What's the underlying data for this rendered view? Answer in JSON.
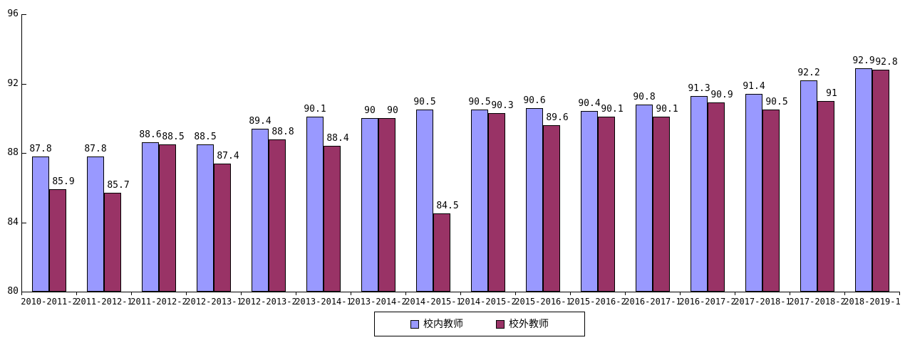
{
  "chart_data": {
    "type": "bar",
    "title": "",
    "xlabel": "",
    "ylabel": "",
    "ylim": [
      80,
      96
    ],
    "yticks": [
      96,
      92,
      88,
      84,
      80
    ],
    "grid": false,
    "legend_position": "bottom-center",
    "categories": [
      "2010-2011-2",
      "2011-2012-1",
      "2011-2012-2",
      "2012-2013-1",
      "2012-2013-2",
      "2013-2014-1",
      "2013-2014-2",
      "2014-2015-1",
      "2014-2015-2",
      "2015-2016-1",
      "2015-2016-2",
      "2016-2017-1",
      "2016-2017-2",
      "2017-2018-1",
      "2017-2018-2",
      "2018-2019-1"
    ],
    "series": [
      {
        "name": "校内教师",
        "color": "#9999FF",
        "values": [
          87.8,
          87.8,
          88.6,
          88.5,
          89.4,
          90.1,
          90,
          90.5,
          90.5,
          90.6,
          90.4,
          90.8,
          91.3,
          91.4,
          92.2,
          92.9
        ]
      },
      {
        "name": "校外教师",
        "color": "#993366",
        "values": [
          85.9,
          85.7,
          88.5,
          87.4,
          88.8,
          88.4,
          90,
          84.5,
          90.3,
          89.6,
          90.1,
          90.1,
          90.9,
          90.5,
          91,
          92.8
        ]
      }
    ]
  },
  "colors": {
    "background": "#FFFFFF",
    "axis": "#000000",
    "text": "#000000",
    "bar_border": "#000000"
  }
}
